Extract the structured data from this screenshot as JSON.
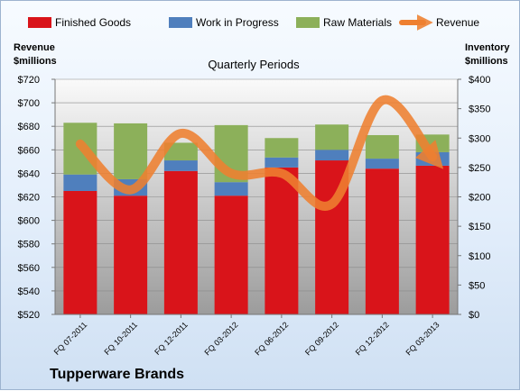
{
  "chart_data": {
    "type": "bar",
    "title": "Quarterly Periods",
    "company": "Tupperware Brands",
    "categories": [
      "FQ 07-2011",
      "FQ 10-2011",
      "FQ 12-2011",
      "FQ 03-2012",
      "FQ 06-2012",
      "FQ 09-2012",
      "FQ 12-2012",
      "FQ 03-2013"
    ],
    "left_axis": {
      "label_line1": "Revenue",
      "label_line2": "$millions",
      "min": 520,
      "max": 720,
      "step": 20,
      "prefix": "$"
    },
    "right_axis": {
      "label_line1": "Inventory",
      "label_line2": "$millions",
      "min": 0,
      "max": 400,
      "step": 50,
      "prefix": "$"
    },
    "series": [
      {
        "name": "Finished Goods",
        "color": "#d9141a",
        "axis": "right",
        "values": [
          210,
          202,
          244,
          202,
          250,
          262,
          248,
          253
        ]
      },
      {
        "name": "Work in Progress",
        "color": "#4f7fbd",
        "axis": "right",
        "values": [
          28,
          28,
          18,
          23,
          17,
          18,
          17,
          23
        ]
      },
      {
        "name": "Raw Materials",
        "color": "#8cb05a",
        "axis": "right",
        "values": [
          88,
          95,
          30,
          97,
          33,
          43,
          40,
          30
        ]
      },
      {
        "name": "Revenue",
        "color": "#ee8030",
        "axis": "left",
        "type": "line",
        "values": [
          665,
          626,
          674,
          640,
          640,
          614,
          702,
          654
        ]
      }
    ],
    "grid": true,
    "legend_position": "top"
  }
}
